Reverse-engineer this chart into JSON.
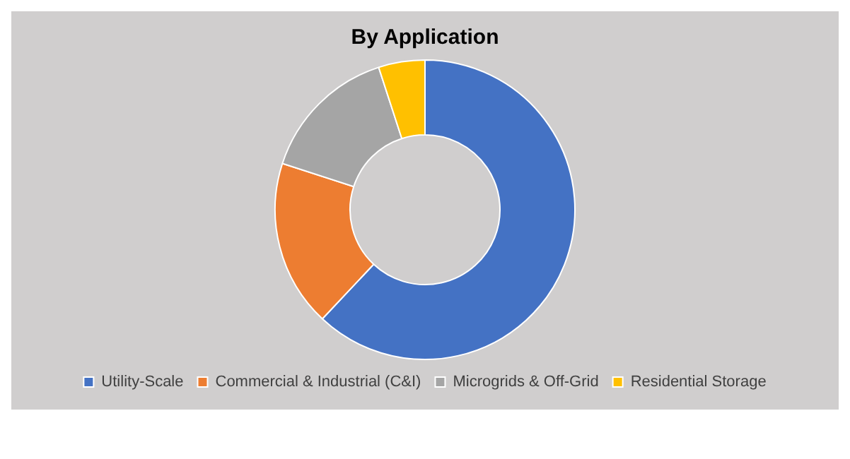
{
  "chart_data": {
    "type": "donut",
    "title": "By Application",
    "categories": [
      "Utility-Scale",
      "Commercial & Industrial (C&I)",
      "Microgrids & Off-Grid",
      "Residential Storage"
    ],
    "values": [
      62,
      18,
      15,
      5
    ],
    "colors": [
      "#4472c4",
      "#ed7d31",
      "#a5a5a5",
      "#ffc000"
    ],
    "legend": "bottom"
  }
}
